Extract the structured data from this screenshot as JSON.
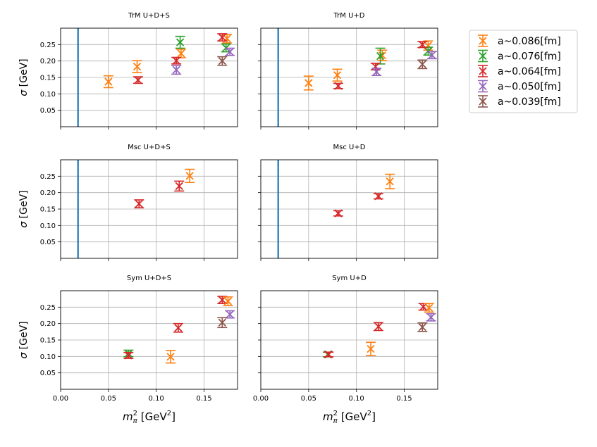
{
  "chart_data": {
    "type": "scatter",
    "description_free": true,
    "xlabel_main": "m",
    "xlabel_sub": "π",
    "xlabel_sup": "2",
    "xlabel_unit_open": " [GeV",
    "xlabel_unit_sup": "2",
    "xlabel_unit_close": "]",
    "ylabel_sigma": "σ",
    "ylabel_unit": " [GeV]",
    "xlim": [
      0.0,
      0.185
    ],
    "ylim": [
      0.0,
      0.3
    ],
    "xticks": [
      0.0,
      0.05,
      0.1,
      0.15
    ],
    "xtick_labels": [
      "0.00",
      "0.05",
      "0.10",
      "0.15"
    ],
    "yticks": [
      0.05,
      0.1,
      0.15,
      0.2,
      0.25
    ],
    "ytick_labels": [
      "0.05",
      "0.10",
      "0.15",
      "0.20",
      "0.25"
    ],
    "physical_point_x": 0.0182,
    "physical_line_color": "#1f77b4",
    "legend_position": "outside-top-right",
    "series_styles": [
      {
        "name": "a~0.086[fm]",
        "color": "#ff7f0e"
      },
      {
        "name": "a~0.076[fm]",
        "color": "#2ca02c"
      },
      {
        "name": "a~0.064[fm]",
        "color": "#d62728"
      },
      {
        "name": "a~0.050[fm]",
        "color": "#9467bd"
      },
      {
        "name": "a~0.039[fm]",
        "color": "#8c564b"
      }
    ],
    "panels": [
      {
        "title": "TrM U+D+S",
        "show_vline": true,
        "series": [
          {
            "name": "a~0.086[fm]",
            "points": [
              {
                "x": 0.05,
                "y": 0.137,
                "err": 0.018
              },
              {
                "x": 0.08,
                "y": 0.183,
                "err": 0.018
              },
              {
                "x": 0.126,
                "y": 0.223,
                "err": 0.013
              },
              {
                "x": 0.174,
                "y": 0.268,
                "err": 0.013
              }
            ]
          },
          {
            "name": "a~0.076[fm]",
            "points": [
              {
                "x": 0.125,
                "y": 0.257,
                "err": 0.018
              },
              {
                "x": 0.173,
                "y": 0.24,
                "err": 0.012
              }
            ]
          },
          {
            "name": "a~0.064[fm]",
            "points": [
              {
                "x": 0.081,
                "y": 0.142,
                "err": 0.01
              },
              {
                "x": 0.121,
                "y": 0.201,
                "err": 0.01
              },
              {
                "x": 0.169,
                "y": 0.272,
                "err": 0.011
              }
            ]
          },
          {
            "name": "a~0.050[fm]",
            "points": [
              {
                "x": 0.121,
                "y": 0.173,
                "err": 0.013
              },
              {
                "x": 0.177,
                "y": 0.228,
                "err": 0.011
              }
            ]
          },
          {
            "name": "a~0.039[fm]",
            "points": [
              {
                "x": 0.169,
                "y": 0.2,
                "err": 0.013
              }
            ]
          }
        ]
      },
      {
        "title": "TrM U+D",
        "show_vline": true,
        "series": [
          {
            "name": "a~0.086[fm]",
            "points": [
              {
                "x": 0.05,
                "y": 0.133,
                "err": 0.021
              },
              {
                "x": 0.08,
                "y": 0.157,
                "err": 0.018
              },
              {
                "x": 0.127,
                "y": 0.217,
                "err": 0.016
              },
              {
                "x": 0.175,
                "y": 0.247,
                "err": 0.014
              }
            ]
          },
          {
            "name": "a~0.076[fm]",
            "points": [
              {
                "x": 0.125,
                "y": 0.215,
                "err": 0.024
              },
              {
                "x": 0.175,
                "y": 0.23,
                "err": 0.012
              }
            ]
          },
          {
            "name": "a~0.064[fm]",
            "points": [
              {
                "x": 0.081,
                "y": 0.124,
                "err": 0.008
              },
              {
                "x": 0.12,
                "y": 0.183,
                "err": 0.01
              },
              {
                "x": 0.169,
                "y": 0.25,
                "err": 0.009
              }
            ]
          },
          {
            "name": "a~0.050[fm]",
            "points": [
              {
                "x": 0.121,
                "y": 0.167,
                "err": 0.011
              },
              {
                "x": 0.179,
                "y": 0.218,
                "err": 0.011
              }
            ]
          },
          {
            "name": "a~0.039[fm]",
            "points": [
              {
                "x": 0.169,
                "y": 0.19,
                "err": 0.013
              }
            ]
          }
        ]
      },
      {
        "title": "Msc U+D+S",
        "show_vline": true,
        "series": [
          {
            "name": "a~0.064[fm]",
            "points": [
              {
                "x": 0.082,
                "y": 0.166,
                "err": 0.012
              },
              {
                "x": 0.124,
                "y": 0.22,
                "err": 0.015
              }
            ]
          },
          {
            "name": "a~0.086[fm]",
            "points": [
              {
                "x": 0.135,
                "y": 0.251,
                "err": 0.02
              }
            ]
          }
        ]
      },
      {
        "title": "Msc U+D",
        "show_vline": true,
        "series": [
          {
            "name": "a~0.064[fm]",
            "points": [
              {
                "x": 0.081,
                "y": 0.137,
                "err": 0.008
              },
              {
                "x": 0.123,
                "y": 0.189,
                "err": 0.008
              }
            ]
          },
          {
            "name": "a~0.086[fm]",
            "points": [
              {
                "x": 0.135,
                "y": 0.234,
                "err": 0.022
              }
            ]
          }
        ]
      },
      {
        "title": "Sym U+D+S",
        "show_vline": false,
        "series": [
          {
            "name": "a~0.076[fm]",
            "points": [
              {
                "x": 0.071,
                "y": 0.109,
                "err": 0.01
              }
            ]
          },
          {
            "name": "a~0.064[fm]",
            "points": [
              {
                "x": 0.071,
                "y": 0.103,
                "err": 0.009
              },
              {
                "x": 0.123,
                "y": 0.187,
                "err": 0.013
              },
              {
                "x": 0.169,
                "y": 0.272,
                "err": 0.011
              }
            ]
          },
          {
            "name": "a~0.086[fm]",
            "points": [
              {
                "x": 0.115,
                "y": 0.099,
                "err": 0.019
              },
              {
                "x": 0.175,
                "y": 0.268,
                "err": 0.013
              }
            ]
          },
          {
            "name": "a~0.050[fm]",
            "points": [
              {
                "x": 0.177,
                "y": 0.228,
                "err": 0.011
              }
            ]
          },
          {
            "name": "a~0.039[fm]",
            "points": [
              {
                "x": 0.169,
                "y": 0.203,
                "err": 0.015
              }
            ]
          }
        ]
      },
      {
        "title": "Sym U+D",
        "show_vline": false,
        "series": [
          {
            "name": "a~0.076[fm]",
            "points": [
              {
                "x": 0.07,
                "y": 0.106,
                "err": 0.007
              }
            ]
          },
          {
            "name": "a~0.064[fm]",
            "points": [
              {
                "x": 0.071,
                "y": 0.106,
                "err": 0.007
              },
              {
                "x": 0.123,
                "y": 0.191,
                "err": 0.012
              },
              {
                "x": 0.17,
                "y": 0.251,
                "err": 0.01
              }
            ]
          },
          {
            "name": "a~0.086[fm]",
            "points": [
              {
                "x": 0.115,
                "y": 0.123,
                "err": 0.02
              },
              {
                "x": 0.176,
                "y": 0.248,
                "err": 0.013
              }
            ]
          },
          {
            "name": "a~0.050[fm]",
            "points": [
              {
                "x": 0.178,
                "y": 0.219,
                "err": 0.011
              }
            ]
          },
          {
            "name": "a~0.039[fm]",
            "points": [
              {
                "x": 0.169,
                "y": 0.189,
                "err": 0.013
              }
            ]
          }
        ]
      }
    ],
    "legend": [
      {
        "label": "a~0.086[fm]",
        "color": "#ff7f0e"
      },
      {
        "label": "a~0.076[fm]",
        "color": "#2ca02c"
      },
      {
        "label": "a~0.064[fm]",
        "color": "#d62728"
      },
      {
        "label": "a~0.050[fm]",
        "color": "#9467bd"
      },
      {
        "label": "a~0.039[fm]",
        "color": "#8c564b"
      }
    ]
  }
}
